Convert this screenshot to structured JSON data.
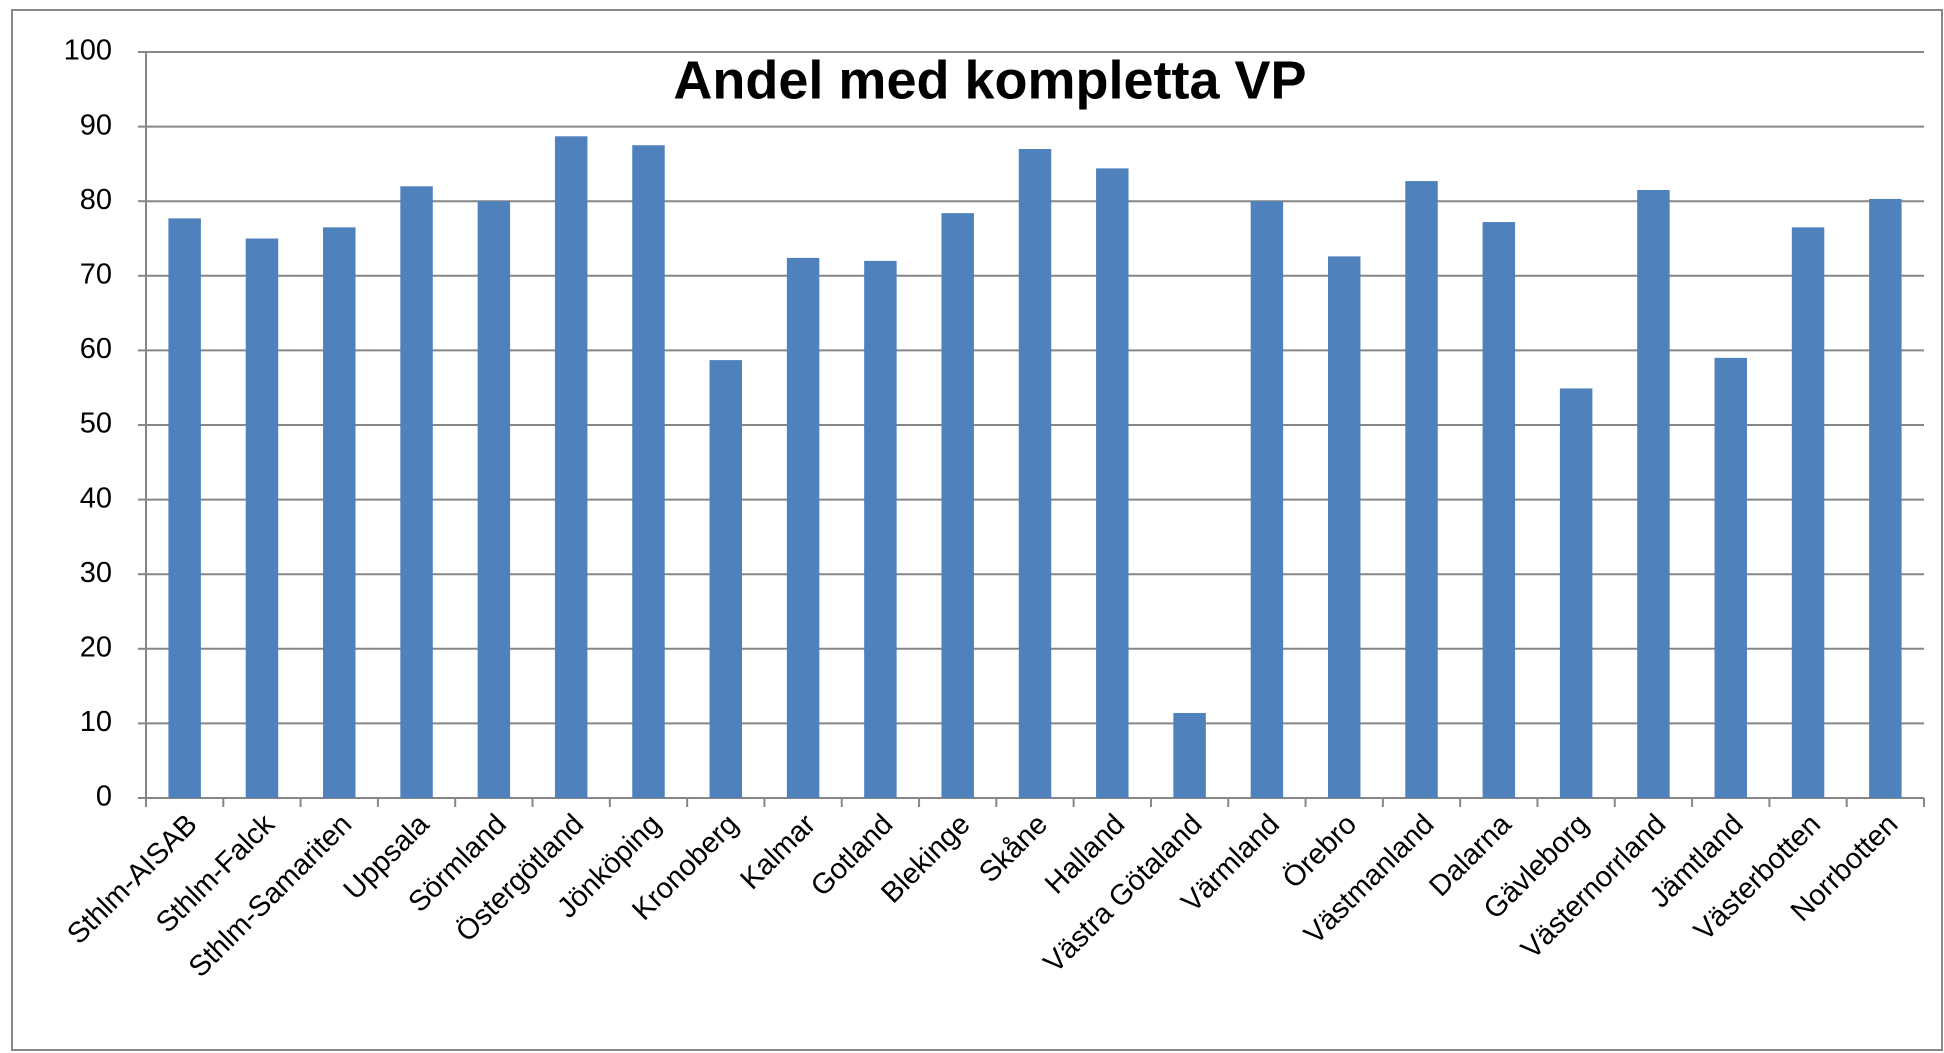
{
  "chart_data": {
    "type": "bar",
    "title": "Andel med kompletta VP",
    "categories": [
      "Sthlm-AISAB",
      "Sthlm-Falck",
      "Sthlm-Samariten",
      "Uppsala",
      "Sörmland",
      "Östergötland",
      "Jönköping",
      "Kronoberg",
      "Kalmar",
      "Gotland",
      "Blekinge",
      "Skåne",
      "Halland",
      "Västra Götaland",
      "Värmland",
      "Örebro",
      "Västmanland",
      "Dalarna",
      "Gävleborg",
      "Västernorrland",
      "Jämtland",
      "Västerbotten",
      "Norrbotten"
    ],
    "values": [
      77.7,
      75,
      76.5,
      82,
      80,
      88.7,
      87.5,
      58.7,
      72.4,
      72,
      78.4,
      87,
      84.4,
      11.4,
      80,
      72.6,
      82.7,
      77.2,
      54.9,
      81.5,
      59,
      76.5,
      80.3
    ],
    "color": "#4f81bd",
    "ylim": [
      0,
      100
    ],
    "yticks": [
      0,
      10,
      20,
      30,
      40,
      50,
      60,
      70,
      80,
      90,
      100
    ],
    "grid": true
  }
}
